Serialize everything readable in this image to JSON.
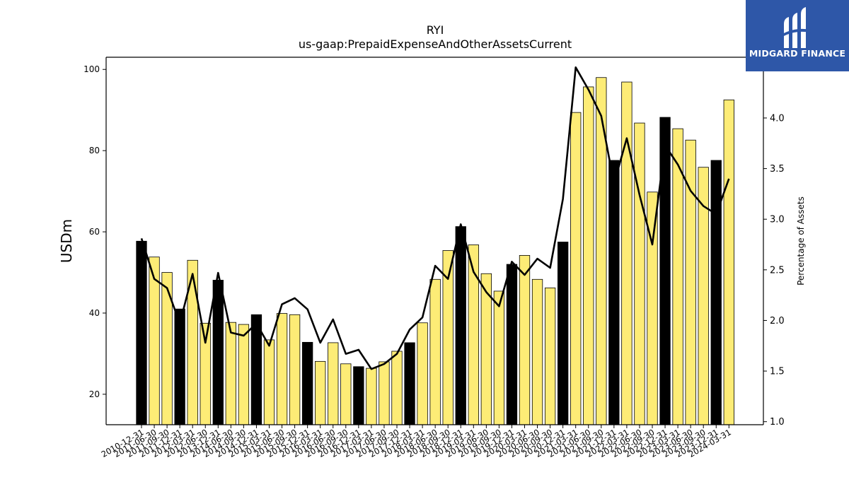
{
  "chart_data": {
    "type": "bar",
    "title": "RYI",
    "subtitle": "us-gaap:PrepaidExpenseAndOtherAssetsCurrent",
    "ylabel": "USDm",
    "y2label": "Percentage of Assets",
    "ylim": [
      12.5,
      103
    ],
    "y2lim": [
      0.97,
      4.6
    ],
    "yticks": [
      "20",
      "40",
      "60",
      "80",
      "100"
    ],
    "y2ticks": [
      "1.0",
      "1.5",
      "2.0",
      "2.5",
      "3.0",
      "3.5",
      "4.0",
      "4.5"
    ],
    "categories": [
      "2010-12-31",
      "2011-06-30",
      "2011-09-30",
      "2011-12-31",
      "2012-03-31",
      "2012-06-30",
      "2013-12-31",
      "2014-06-30",
      "2014-09-30",
      "2014-12-31",
      "2015-03-31",
      "2015-06-30",
      "2015-09-30",
      "2015-12-31",
      "2016-03-31",
      "2016-06-30",
      "2016-09-30",
      "2016-12-31",
      "2017-03-31",
      "2017-06-30",
      "2017-09-30",
      "2017-12-31",
      "2018-03-31",
      "2018-06-30",
      "2018-09-30",
      "2018-12-31",
      "2019-03-31",
      "2019-06-30",
      "2019-09-30",
      "2019-12-31",
      "2020-03-31",
      "2020-06-30",
      "2020-09-30",
      "2020-12-31",
      "2021-03-31",
      "2021-06-30",
      "2021-09-30",
      "2021-12-31",
      "2022-03-31",
      "2022-06-30",
      "2022-09-30",
      "2022-12-31",
      "2023-03-31",
      "2023-06-30",
      "2023-09-30",
      "2023-12-31",
      "2024-03-31"
    ],
    "series": [
      {
        "kind": "bar",
        "values": [
          57.7,
          53.8,
          50.0,
          41.0,
          53.0,
          37.5,
          48.1,
          37.7,
          37.2,
          39.6,
          33.4,
          39.9,
          39.6,
          32.8,
          28.1,
          32.7,
          27.5,
          26.8,
          26.4,
          28.0,
          30.6,
          32.7,
          37.6,
          48.3,
          55.4,
          61.3,
          56.8,
          49.7,
          45.4,
          52.0,
          54.2,
          48.3,
          46.2,
          57.5,
          89.4,
          95.7,
          98.0,
          77.6,
          96.9,
          86.8,
          69.8,
          88.2,
          85.4,
          82.6,
          75.9,
          77.6,
          92.5
        ]
      },
      {
        "kind": "line",
        "axis": "right",
        "values": [
          2.81,
          2.41,
          2.32,
          1.97,
          2.46,
          1.78,
          2.47,
          1.88,
          1.85,
          1.97,
          1.75,
          2.16,
          2.22,
          2.11,
          1.78,
          2.01,
          1.67,
          1.71,
          1.52,
          1.57,
          1.67,
          1.91,
          2.03,
          2.54,
          2.41,
          2.95,
          2.48,
          2.28,
          2.14,
          2.58,
          2.45,
          2.61,
          2.52,
          3.2,
          4.5,
          4.28,
          4.02,
          3.35,
          3.8,
          3.24,
          2.75,
          3.73,
          3.54,
          3.28,
          3.13,
          3.05,
          3.4
        ]
      }
    ],
    "bar_colors": {
      "year_end": "#000000",
      "quarter": "#fdec76"
    },
    "line_color": "#000000",
    "grid": false
  },
  "logo": {
    "text": "MIDGARD FINANCE",
    "background": "#2e57a8"
  }
}
